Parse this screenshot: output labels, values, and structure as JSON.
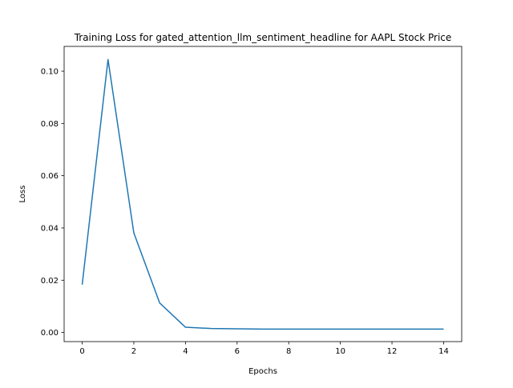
{
  "chart_data": {
    "type": "line",
    "title": "Training Loss for gated_attention_llm_sentiment_headline for AAPL Stock Price",
    "xlabel": "Epochs",
    "ylabel": "Loss",
    "xlim": [
      -0.7,
      14.7
    ],
    "ylim": [
      -0.0035,
      0.1095
    ],
    "x_ticks": [
      0,
      2,
      4,
      6,
      8,
      10,
      12,
      14
    ],
    "x_tick_labels": [
      "0",
      "2",
      "4",
      "6",
      "8",
      "10",
      "12",
      "14"
    ],
    "y_ticks": [
      0.0,
      0.02,
      0.04,
      0.06,
      0.08,
      0.1
    ],
    "y_tick_labels": [
      "0.00",
      "0.02",
      "0.04",
      "0.06",
      "0.08",
      "0.10"
    ],
    "grid": false,
    "legend": "none",
    "series": [
      {
        "color": "#1f77b4",
        "x": [
          0,
          1,
          2,
          3,
          4,
          5,
          6,
          7,
          8,
          9,
          10,
          11,
          12,
          13,
          14
        ],
        "values": [
          0.0183,
          0.1045,
          0.0381,
          0.0113,
          0.002,
          0.0015,
          0.0014,
          0.0013,
          0.0013,
          0.0013,
          0.0013,
          0.0013,
          0.0013,
          0.0013,
          0.0013
        ]
      }
    ]
  }
}
